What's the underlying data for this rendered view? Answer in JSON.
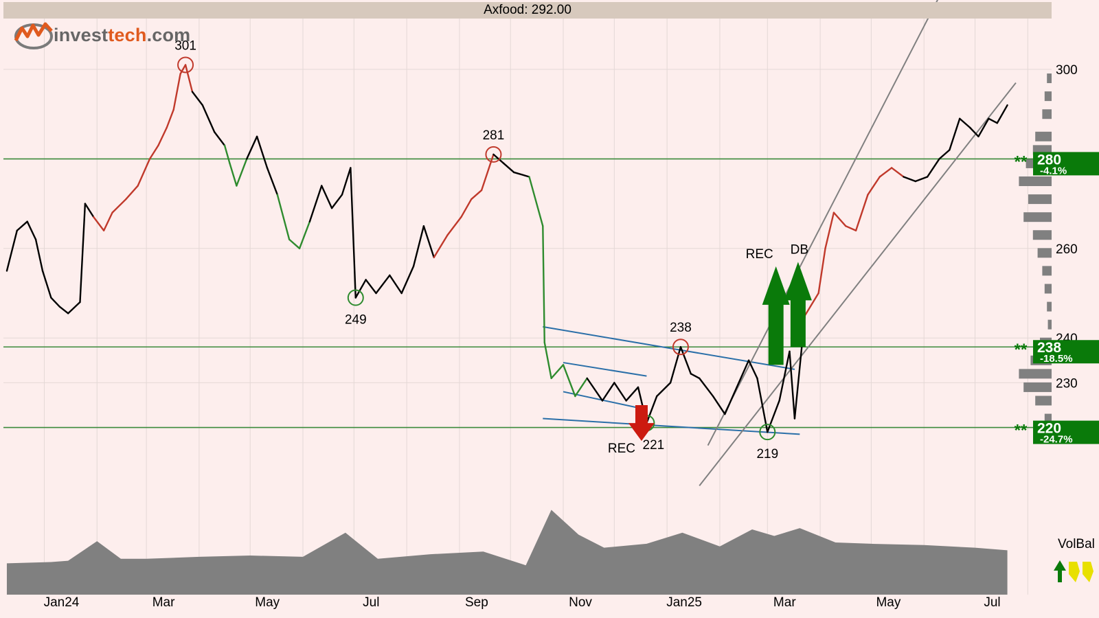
{
  "header": {
    "title": "Axfood: 292.00"
  },
  "logo": {
    "part1": "invest",
    "part2": "tech",
    "part3": ".com"
  },
  "volbal": {
    "label": "VolBal"
  },
  "colors": {
    "background": "#fdeeed",
    "price_line": "#000000",
    "uptrend_line": "#c0392b",
    "downtrend_line": "#2e8b2e",
    "support_resistance": "#3a8a3a",
    "trend_channel": "#2a6fa8",
    "rising_channel": "#808080",
    "volume_fill": "#808080",
    "level_badge": "#0a7a0a",
    "buy_arrow": "#0a7a0a",
    "sell_arrow": "#cc1a10"
  },
  "chart_data": {
    "type": "line",
    "title": "Axfood: 292.00",
    "x_tick_labels": [
      "Jan24",
      "Mar",
      "May",
      "Jul",
      "Sep",
      "Nov",
      "Jan25",
      "Mar",
      "May",
      "Jul"
    ],
    "x_tick_dates": [
      "2024-01-01",
      "2024-03-01",
      "2024-05-01",
      "2024-07-01",
      "2024-09-01",
      "2024-11-01",
      "2025-01-01",
      "2025-03-01",
      "2025-05-01",
      "2025-07-01"
    ],
    "y_tick_labels": [
      "230",
      "240",
      "260",
      "300"
    ],
    "y_tick_values": [
      230,
      240,
      260,
      300
    ],
    "ylim": [
      218,
      303
    ],
    "grid": true,
    "series": [
      {
        "points": [
          [
            "2023-12-10",
            255
          ],
          [
            "2023-12-16",
            264
          ],
          [
            "2023-12-22",
            266
          ],
          [
            "2023-12-27",
            262
          ],
          [
            "2023-12-31",
            255
          ],
          [
            "2024-01-05",
            249
          ],
          [
            "2024-01-10",
            247
          ],
          [
            "2024-01-15",
            245.5
          ],
          [
            "2024-01-22",
            248
          ],
          [
            "2024-01-25",
            270
          ],
          [
            "2024-01-30",
            267
          ],
          [
            "2024-02-05",
            264
          ],
          [
            "2024-02-10",
            268
          ],
          [
            "2024-02-18",
            271
          ],
          [
            "2024-02-25",
            274
          ],
          [
            "2024-03-03",
            280
          ],
          [
            "2024-03-08",
            283
          ],
          [
            "2024-03-13",
            287
          ],
          [
            "2024-03-17",
            291
          ],
          [
            "2024-03-21",
            299
          ],
          [
            "2024-03-24",
            301
          ],
          [
            "2024-03-28",
            295
          ],
          [
            "2024-04-03",
            292
          ],
          [
            "2024-04-10",
            286
          ],
          [
            "2024-04-16",
            283
          ],
          [
            "2024-04-19",
            279
          ],
          [
            "2024-04-23",
            274
          ],
          [
            "2024-04-29",
            280
          ],
          [
            "2024-05-05",
            285
          ],
          [
            "2024-05-11",
            278
          ],
          [
            "2024-05-17",
            272
          ],
          [
            "2024-05-24",
            262
          ],
          [
            "2024-05-30",
            260
          ],
          [
            "2024-06-05",
            266
          ],
          [
            "2024-06-12",
            274
          ],
          [
            "2024-06-18",
            269
          ],
          [
            "2024-06-24",
            272
          ],
          [
            "2024-06-29",
            278
          ],
          [
            "2024-07-02",
            249
          ],
          [
            "2024-07-08",
            253
          ],
          [
            "2024-07-14",
            250
          ],
          [
            "2024-07-22",
            254
          ],
          [
            "2024-07-29",
            250
          ],
          [
            "2024-08-05",
            256
          ],
          [
            "2024-08-11",
            265
          ],
          [
            "2024-08-17",
            258
          ],
          [
            "2024-08-25",
            263
          ],
          [
            "2024-09-02",
            267
          ],
          [
            "2024-09-08",
            271
          ],
          [
            "2024-09-14",
            273
          ],
          [
            "2024-09-21",
            281
          ],
          [
            "2024-09-27",
            279
          ],
          [
            "2024-10-03",
            277
          ],
          [
            "2024-10-12",
            276
          ],
          [
            "2024-10-20",
            265
          ],
          [
            "2024-10-21",
            239
          ],
          [
            "2024-10-25",
            231
          ],
          [
            "2024-11-01",
            234
          ],
          [
            "2024-11-08",
            227
          ],
          [
            "2024-11-15",
            231
          ],
          [
            "2024-11-24",
            226
          ],
          [
            "2024-12-01",
            230
          ],
          [
            "2024-12-08",
            226
          ],
          [
            "2024-12-15",
            229
          ],
          [
            "2024-12-20",
            221
          ],
          [
            "2024-12-26",
            227
          ],
          [
            "2025-01-03",
            230
          ],
          [
            "2025-01-09",
            238
          ],
          [
            "2025-01-15",
            232
          ],
          [
            "2025-01-20",
            231
          ],
          [
            "2025-01-28",
            227
          ],
          [
            "2025-02-04",
            223
          ],
          [
            "2025-02-11",
            229
          ],
          [
            "2025-02-18",
            235
          ],
          [
            "2025-02-23",
            231
          ],
          [
            "2025-03-01",
            219
          ],
          [
            "2025-03-08",
            226
          ],
          [
            "2025-03-14",
            237
          ],
          [
            "2025-03-17",
            222
          ],
          [
            "2025-03-23",
            245
          ],
          [
            "2025-03-31",
            250
          ],
          [
            "2025-04-04",
            260
          ],
          [
            "2025-04-09",
            268
          ],
          [
            "2025-04-16",
            265
          ],
          [
            "2025-04-22",
            264
          ],
          [
            "2025-04-29",
            272
          ],
          [
            "2025-05-06",
            276
          ],
          [
            "2025-05-13",
            278
          ],
          [
            "2025-05-20",
            276
          ],
          [
            "2025-05-27",
            275
          ],
          [
            "2025-06-03",
            276
          ],
          [
            "2025-06-10",
            280
          ],
          [
            "2025-06-16",
            282
          ],
          [
            "2025-06-22",
            289
          ],
          [
            "2025-06-28",
            287
          ],
          [
            "2025-07-03",
            285
          ],
          [
            "2025-07-09",
            289
          ],
          [
            "2025-07-14",
            288
          ],
          [
            "2025-07-20",
            292
          ]
        ]
      }
    ],
    "volume_balance": [
      [
        "2023-12-10",
        0.48
      ],
      [
        "2024-01-05",
        0.5
      ],
      [
        "2024-01-15",
        0.52
      ],
      [
        "2024-02-01",
        0.82
      ],
      [
        "2024-02-15",
        0.55
      ],
      [
        "2024-03-01",
        0.55
      ],
      [
        "2024-04-01",
        0.58
      ],
      [
        "2024-05-01",
        0.6
      ],
      [
        "2024-06-01",
        0.58
      ],
      [
        "2024-06-26",
        0.95
      ],
      [
        "2024-07-15",
        0.55
      ],
      [
        "2024-08-15",
        0.62
      ],
      [
        "2024-09-15",
        0.66
      ],
      [
        "2024-10-10",
        0.45
      ],
      [
        "2024-10-25",
        1.3
      ],
      [
        "2024-11-10",
        0.92
      ],
      [
        "2024-11-25",
        0.72
      ],
      [
        "2024-12-20",
        0.78
      ],
      [
        "2025-01-10",
        0.95
      ],
      [
        "2025-02-01",
        0.74
      ],
      [
        "2025-02-20",
        1.0
      ],
      [
        "2025-03-05",
        0.9
      ],
      [
        "2025-03-20",
        1.02
      ],
      [
        "2025-04-10",
        0.8
      ],
      [
        "2025-05-01",
        0.78
      ],
      [
        "2025-06-01",
        0.76
      ],
      [
        "2025-07-01",
        0.72
      ],
      [
        "2025-07-20",
        0.68
      ]
    ],
    "price_highlights": [
      {
        "trend": "up",
        "from": "2024-02-05",
        "to": "2024-03-28"
      },
      {
        "trend": "down",
        "from": "2024-04-19",
        "to": "2024-04-29"
      },
      {
        "trend": "down",
        "from": "2024-05-24",
        "to": "2024-06-05"
      },
      {
        "trend": "up",
        "from": "2024-08-25",
        "to": "2024-09-21"
      },
      {
        "trend": "down",
        "from": "2024-10-20",
        "to": "2024-11-15"
      },
      {
        "trend": "up",
        "from": "2025-03-31",
        "to": "2025-05-20"
      }
    ],
    "extremes": [
      {
        "label": "301",
        "date": "2024-03-24",
        "value": 301,
        "type": "high"
      },
      {
        "label": "249",
        "date": "2024-07-02",
        "value": 249,
        "type": "low"
      },
      {
        "label": "281",
        "date": "2024-09-21",
        "value": 281,
        "type": "high"
      },
      {
        "label": "238",
        "date": "2025-01-09",
        "value": 238,
        "type": "high"
      },
      {
        "label": "221",
        "date": "2024-12-20",
        "value": 221,
        "type": "low"
      },
      {
        "label": "219",
        "date": "2025-03-01",
        "value": 219,
        "type": "low"
      }
    ],
    "levels": [
      {
        "value": 280,
        "label": "280",
        "pct": "-4.1%"
      },
      {
        "value": 238,
        "label": "238",
        "pct": "-18.5%"
      },
      {
        "value": 220,
        "label": "220",
        "pct": "-24.7%"
      }
    ],
    "trend_lines": [
      {
        "style": "channel",
        "from": [
          "2024-10-20",
          242.5
        ],
        "to": [
          "2025-03-17",
          233.0
        ]
      },
      {
        "style": "channel",
        "from": [
          "2024-11-01",
          234.5
        ],
        "to": [
          "2024-12-20",
          231.5
        ]
      },
      {
        "style": "channel",
        "from": [
          "2024-11-01",
          228.0
        ],
        "to": [
          "2024-12-20",
          224.0
        ]
      },
      {
        "style": "channel",
        "from": [
          "2024-10-20",
          222.0
        ],
        "to": [
          "2025-03-20",
          218.5
        ]
      },
      {
        "style": "rising",
        "from": [
          "2025-01-25",
          216.0
        ],
        "to": [
          "2025-06-30",
          331.0
        ]
      },
      {
        "style": "rising",
        "from": [
          "2025-01-20",
          207.0
        ],
        "to": [
          "2025-07-25",
          297.0
        ]
      }
    ],
    "signals": [
      {
        "type": "buy",
        "label": "REC",
        "date": "2025-03-06",
        "from": 234,
        "to": 256
      },
      {
        "type": "buy",
        "label": "DB",
        "date": "2025-03-19",
        "from": 238,
        "to": 257
      },
      {
        "type": "sell",
        "label": "REC",
        "date": "2024-12-17",
        "from": 225,
        "to": 217
      }
    ],
    "volume_profile": [
      [
        298,
        0.1
      ],
      [
        294,
        0.15
      ],
      [
        290,
        0.2
      ],
      [
        285,
        0.35
      ],
      [
        282,
        0.4
      ],
      [
        279,
        0.55
      ],
      [
        275,
        0.7
      ],
      [
        271,
        0.5
      ],
      [
        267,
        0.6
      ],
      [
        263,
        0.4
      ],
      [
        259,
        0.3
      ],
      [
        255,
        0.2
      ],
      [
        251,
        0.15
      ],
      [
        247,
        0.1
      ],
      [
        243,
        0.08
      ],
      [
        239,
        0.25
      ],
      [
        235,
        0.45
      ],
      [
        232,
        0.7
      ],
      [
        229,
        0.6
      ],
      [
        226,
        0.35
      ],
      [
        222,
        0.15
      ]
    ]
  }
}
